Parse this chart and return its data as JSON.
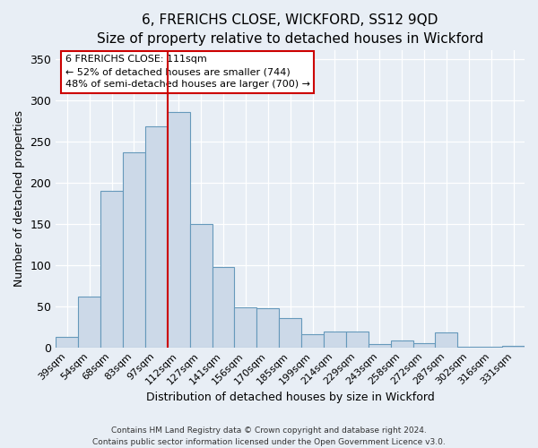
{
  "title": "6, FRERICHS CLOSE, WICKFORD, SS12 9QD",
  "subtitle": "Size of property relative to detached houses in Wickford",
  "xlabel": "Distribution of detached houses by size in Wickford",
  "ylabel": "Number of detached properties",
  "bar_color": "#ccd9e8",
  "bar_edge_color": "#6699bb",
  "bin_labels": [
    "39sqm",
    "54sqm",
    "68sqm",
    "83sqm",
    "97sqm",
    "112sqm",
    "127sqm",
    "141sqm",
    "156sqm",
    "170sqm",
    "185sqm",
    "199sqm",
    "214sqm",
    "229sqm",
    "243sqm",
    "258sqm",
    "272sqm",
    "287sqm",
    "302sqm",
    "316sqm",
    "331sqm"
  ],
  "bar_heights": [
    13,
    62,
    190,
    236,
    268,
    285,
    150,
    97,
    48,
    47,
    35,
    16,
    19,
    19,
    4,
    8,
    5,
    18,
    1,
    1,
    2
  ],
  "vline_bin_index": 5,
  "vline_color": "#cc0000",
  "ylim": [
    0,
    360
  ],
  "yticks": [
    0,
    50,
    100,
    150,
    200,
    250,
    300,
    350
  ],
  "annotation_title": "6 FRERICHS CLOSE: 111sqm",
  "annotation_line1": "← 52% of detached houses are smaller (744)",
  "annotation_line2": "48% of semi-detached houses are larger (700) →",
  "annotation_box_color": "#ffffff",
  "annotation_box_edge": "#cc0000",
  "footer1": "Contains HM Land Registry data © Crown copyright and database right 2024.",
  "footer2": "Contains public sector information licensed under the Open Government Licence v3.0.",
  "background_color": "#e8eef5",
  "title_fontsize": 11,
  "tick_label_fontsize": 8
}
